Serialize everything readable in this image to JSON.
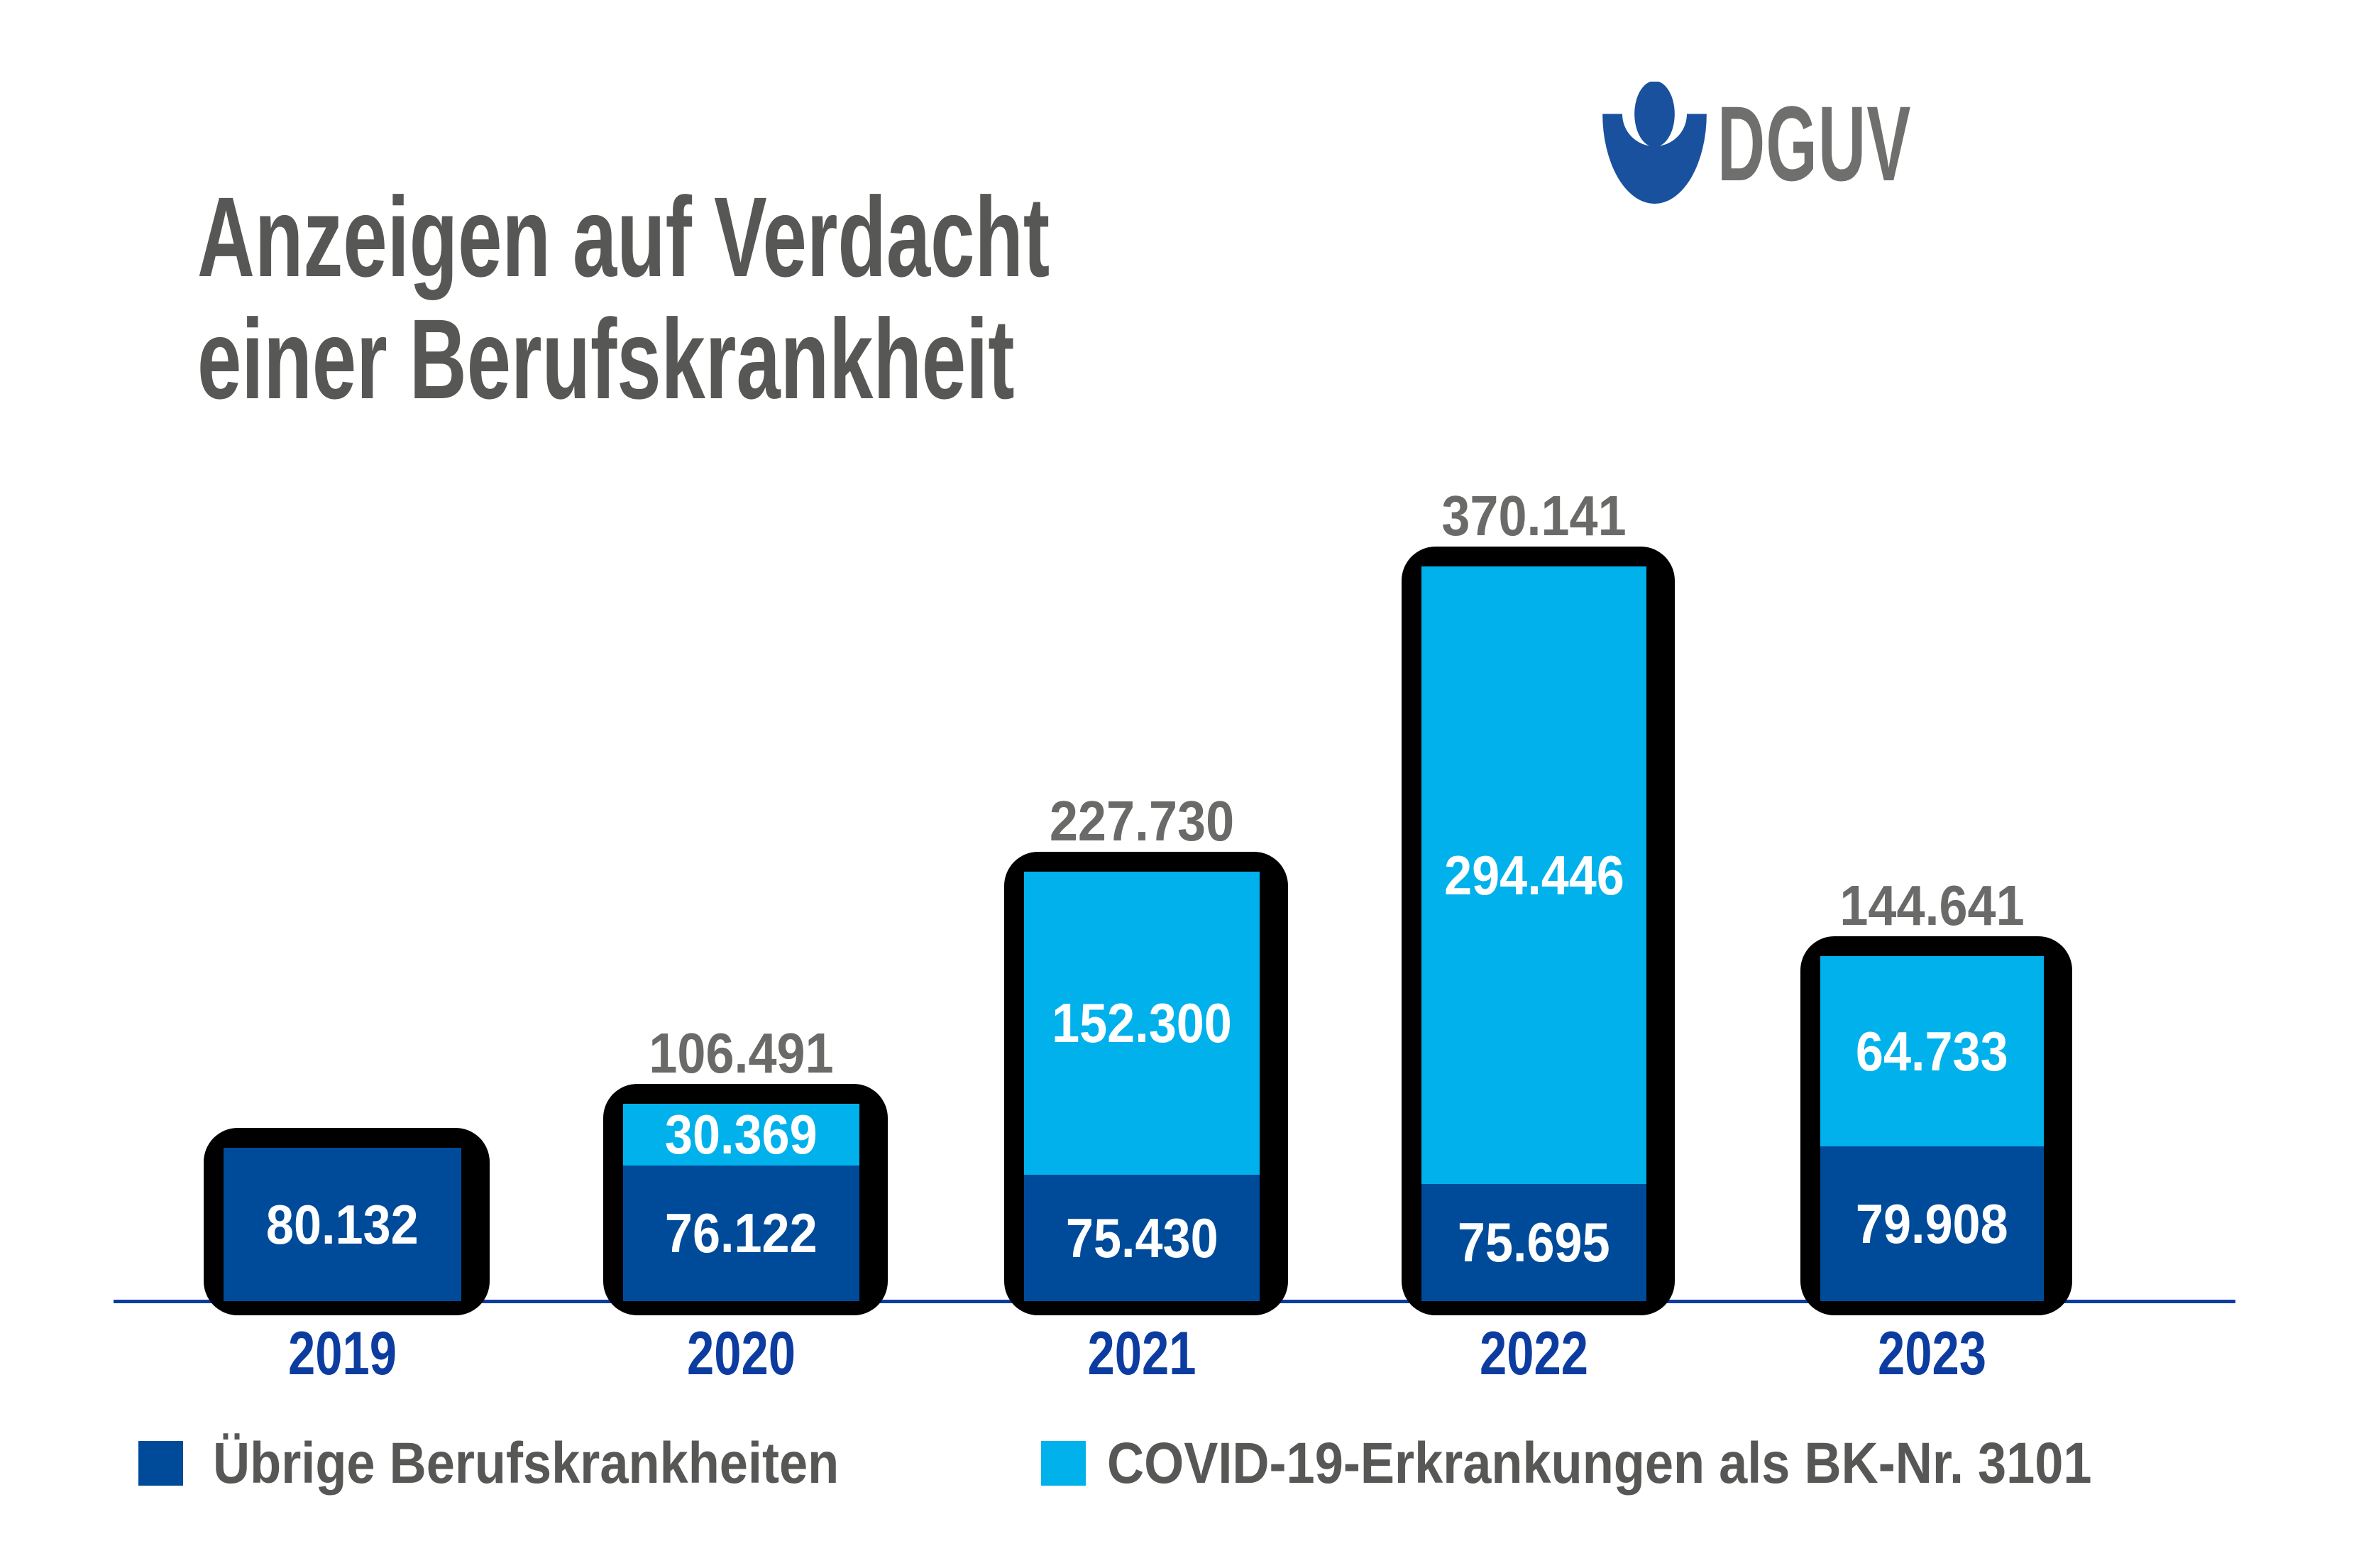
{
  "title": {
    "line1": "Anzeigen auf Verdacht",
    "line2": "einer Berufskrankheit"
  },
  "logo": {
    "text": "DGUV",
    "mark": "dguv-person-icon"
  },
  "colors": {
    "dark_blue": "#004B99",
    "light_blue": "#00B1EB",
    "axis_blue": "#0D3CA0",
    "year_label_blue": "#0D3CA0",
    "title_gray": "#575756",
    "total_label_gray": "#6A6A69",
    "logo_blue": "#1A519E",
    "logo_text_gray": "#6F6F6E",
    "bar_outline": "#000000",
    "segment_label_white": "#FFFFFF",
    "background": "#FFFFFF"
  },
  "chart_data": {
    "type": "bar",
    "stacked": true,
    "title": "Anzeigen auf Verdacht einer Berufskrankheit",
    "categories": [
      "2019",
      "2020",
      "2021",
      "2022",
      "2023"
    ],
    "series": [
      {
        "name": "Übrige Berufskrankheiten",
        "color": "#004B99",
        "values": [
          80132,
          76122,
          75430,
          75695,
          79908
        ],
        "value_labels": [
          "80.132",
          "76.122",
          "75.430",
          "75.695",
          "79.908"
        ]
      },
      {
        "name": "COVID-19-Erkrankungen als BK-Nr. 3101",
        "color": "#00B1EB",
        "values": [
          0,
          30369,
          152300,
          294446,
          64733
        ],
        "value_labels": [
          "",
          "30.369",
          "152.300",
          "294.446",
          "64.733"
        ]
      }
    ],
    "totals": [
      80132,
      106491,
      227730,
      370141,
      144641
    ],
    "total_labels": [
      "",
      "106.491",
      "227.730",
      "370.141",
      "144.641"
    ],
    "xlabel": "",
    "ylabel": "",
    "grid": false,
    "legend_position": "bottom",
    "number_format": "de-DE (Tausenderpunkt)"
  },
  "legend": {
    "items": [
      {
        "label": "Übrige Berufskrankheiten",
        "color": "#004B99"
      },
      {
        "label": "COVID-19-Erkrankungen als BK-Nr. 3101",
        "color": "#00B1EB"
      }
    ]
  }
}
